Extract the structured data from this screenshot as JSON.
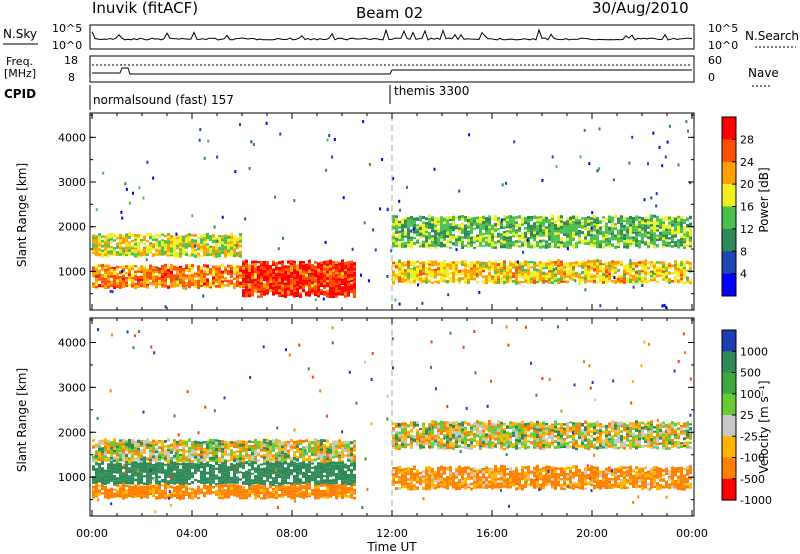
{
  "header": {
    "station": "Inuvik (fitACF)",
    "beam": "Beam 02",
    "date": "30/Aug/2010"
  },
  "mini_panels": {
    "nsky_label": "N.Sky",
    "nsky_ticks": [
      "10^5",
      "10^0"
    ],
    "nsearch_label": "N.Search",
    "nsearch_ticks": [
      "10^5",
      "10^0"
    ],
    "freq_label_1": "Freq.",
    "freq_label_2": "[MHz]",
    "freq_ticks": [
      "18",
      "8"
    ],
    "nave_label": "Nave",
    "nave_ticks": [
      "60",
      "0"
    ],
    "cpid_label": "CPID",
    "cpid_modes": [
      {
        "name": "normalsound (fast) 157",
        "start_hour": 0
      },
      {
        "name": "themis 3300",
        "start_hour": 12
      }
    ]
  },
  "chart_data": [
    {
      "type": "heatmap",
      "title": "",
      "xlabel": "",
      "ylabel": "Slant Range [km]",
      "xlim": [
        0,
        24
      ],
      "ylim": [
        180,
        4500
      ],
      "y_ticks": [
        "4000",
        "3000",
        "2000",
        "1000"
      ],
      "colorbar_label": "Power [dB]",
      "colorbar_ticks": [
        "28",
        "24",
        "20",
        "16",
        "12",
        "8",
        "4"
      ],
      "colors": [
        "#0000ff",
        "#1e46b4",
        "#2e8b57",
        "#4cc04c",
        "#f0f020",
        "#ffa000",
        "#ff5000",
        "#ff0000"
      ],
      "bands": [
        {
          "from_hour": 0,
          "to_hour": 6,
          "min_km": 1300,
          "max_km": 1800,
          "value_db": 18
        },
        {
          "from_hour": 0,
          "to_hour": 10.5,
          "min_km": 600,
          "max_km": 1100,
          "value_db": 24
        },
        {
          "from_hour": 6,
          "to_hour": 10.5,
          "min_km": 400,
          "max_km": 1200,
          "value_db": 28
        },
        {
          "from_hour": 12,
          "to_hour": 24,
          "min_km": 1500,
          "max_km": 2200,
          "value_db": 14
        },
        {
          "from_hour": 12,
          "to_hour": 24,
          "min_km": 700,
          "max_km": 1200,
          "value_db": 20
        }
      ]
    },
    {
      "type": "heatmap",
      "title": "",
      "xlabel": "Time UT",
      "ylabel": "Slant Range [km]",
      "xlim": [
        0,
        24
      ],
      "ylim": [
        180,
        4500
      ],
      "x_ticks": [
        "00:00",
        "04:00",
        "08:00",
        "12:00",
        "16:00",
        "20:00",
        "00:00"
      ],
      "y_ticks": [
        "4000",
        "3000",
        "2000",
        "1000"
      ],
      "colorbar_label": "Velocity [m s⁻¹]",
      "colorbar_ticks": [
        "1000",
        "500",
        "100",
        "25",
        "-25",
        "-100",
        "-500",
        "-1000"
      ],
      "colors": [
        "#1e3cb4",
        "#2e8b57",
        "#3aaa3a",
        "#66cc33",
        "#c8c8c8",
        "#ffb400",
        "#ff8000",
        "#ff4000",
        "#ff0000"
      ],
      "bands": [
        {
          "from_hour": 0,
          "to_hour": 10.5,
          "min_km": 1300,
          "max_km": 1800,
          "value_ms": 0
        },
        {
          "from_hour": 0,
          "to_hour": 10.5,
          "min_km": 800,
          "max_km": 1300,
          "value_ms": 300
        },
        {
          "from_hour": 0,
          "to_hour": 10.5,
          "min_km": 500,
          "max_km": 800,
          "value_ms": -200
        },
        {
          "from_hour": 12,
          "to_hour": 24,
          "min_km": 1600,
          "max_km": 2200,
          "value_ms": 0
        },
        {
          "from_hour": 12,
          "to_hour": 24,
          "min_km": 700,
          "max_km": 1200,
          "value_ms": -150
        }
      ]
    }
  ]
}
